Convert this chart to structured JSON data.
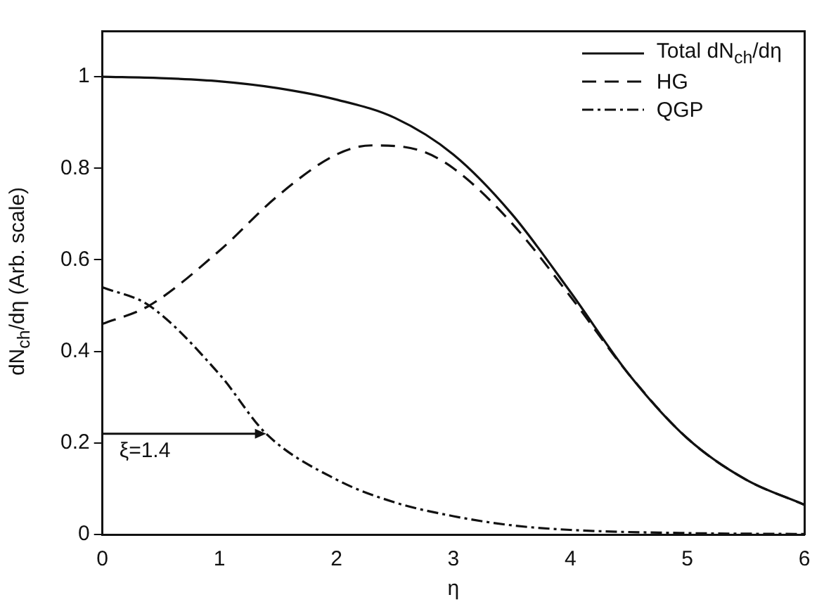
{
  "chart_data": {
    "type": "line",
    "xlabel": "η",
    "ylabel": "dN$_{ch}$/dη (Arb. scale)",
    "xlim": [
      0,
      6
    ],
    "ylim": [
      0,
      1.1
    ],
    "xticks": [
      0,
      1,
      2,
      3,
      4,
      5,
      6
    ],
    "yticks": [
      0,
      0.2,
      0.4,
      0.6,
      0.8,
      1
    ],
    "legend": "top right",
    "grid": false,
    "marker": "none",
    "series": [
      {
        "name": "Total dN$_{ch}$/dη",
        "color": "#111111",
        "line_style": "solid",
        "x": [
          0,
          0.5,
          1,
          1.5,
          2,
          2.5,
          3,
          3.5,
          4,
          4.5,
          5,
          5.5,
          6
        ],
        "values": [
          1.0,
          0.997,
          0.99,
          0.975,
          0.95,
          0.91,
          0.83,
          0.7,
          0.53,
          0.35,
          0.21,
          0.12,
          0.065
        ]
      },
      {
        "name": "HG",
        "color": "#111111",
        "line_style": "dashed",
        "x": [
          0,
          0.4,
          1,
          1.5,
          2,
          2.3,
          2.7,
          3,
          3.5,
          4,
          4.5,
          5,
          5.5,
          6
        ],
        "values": [
          0.46,
          0.5,
          0.62,
          0.74,
          0.83,
          0.85,
          0.84,
          0.8,
          0.68,
          0.52,
          0.35,
          0.21,
          0.12,
          0.065
        ]
      },
      {
        "name": "QGP",
        "color": "#111111",
        "line_style": "dotted",
        "x": [
          0,
          0.4,
          1,
          1.4,
          2,
          2.5,
          3,
          3.5,
          4,
          5,
          6
        ],
        "values": [
          0.54,
          0.5,
          0.35,
          0.22,
          0.12,
          0.07,
          0.04,
          0.02,
          0.01,
          0.003,
          0.001
        ]
      }
    ],
    "annotations": [
      {
        "text": "ξ=1.4",
        "x": 1.4,
        "y": 0.22
      }
    ]
  }
}
